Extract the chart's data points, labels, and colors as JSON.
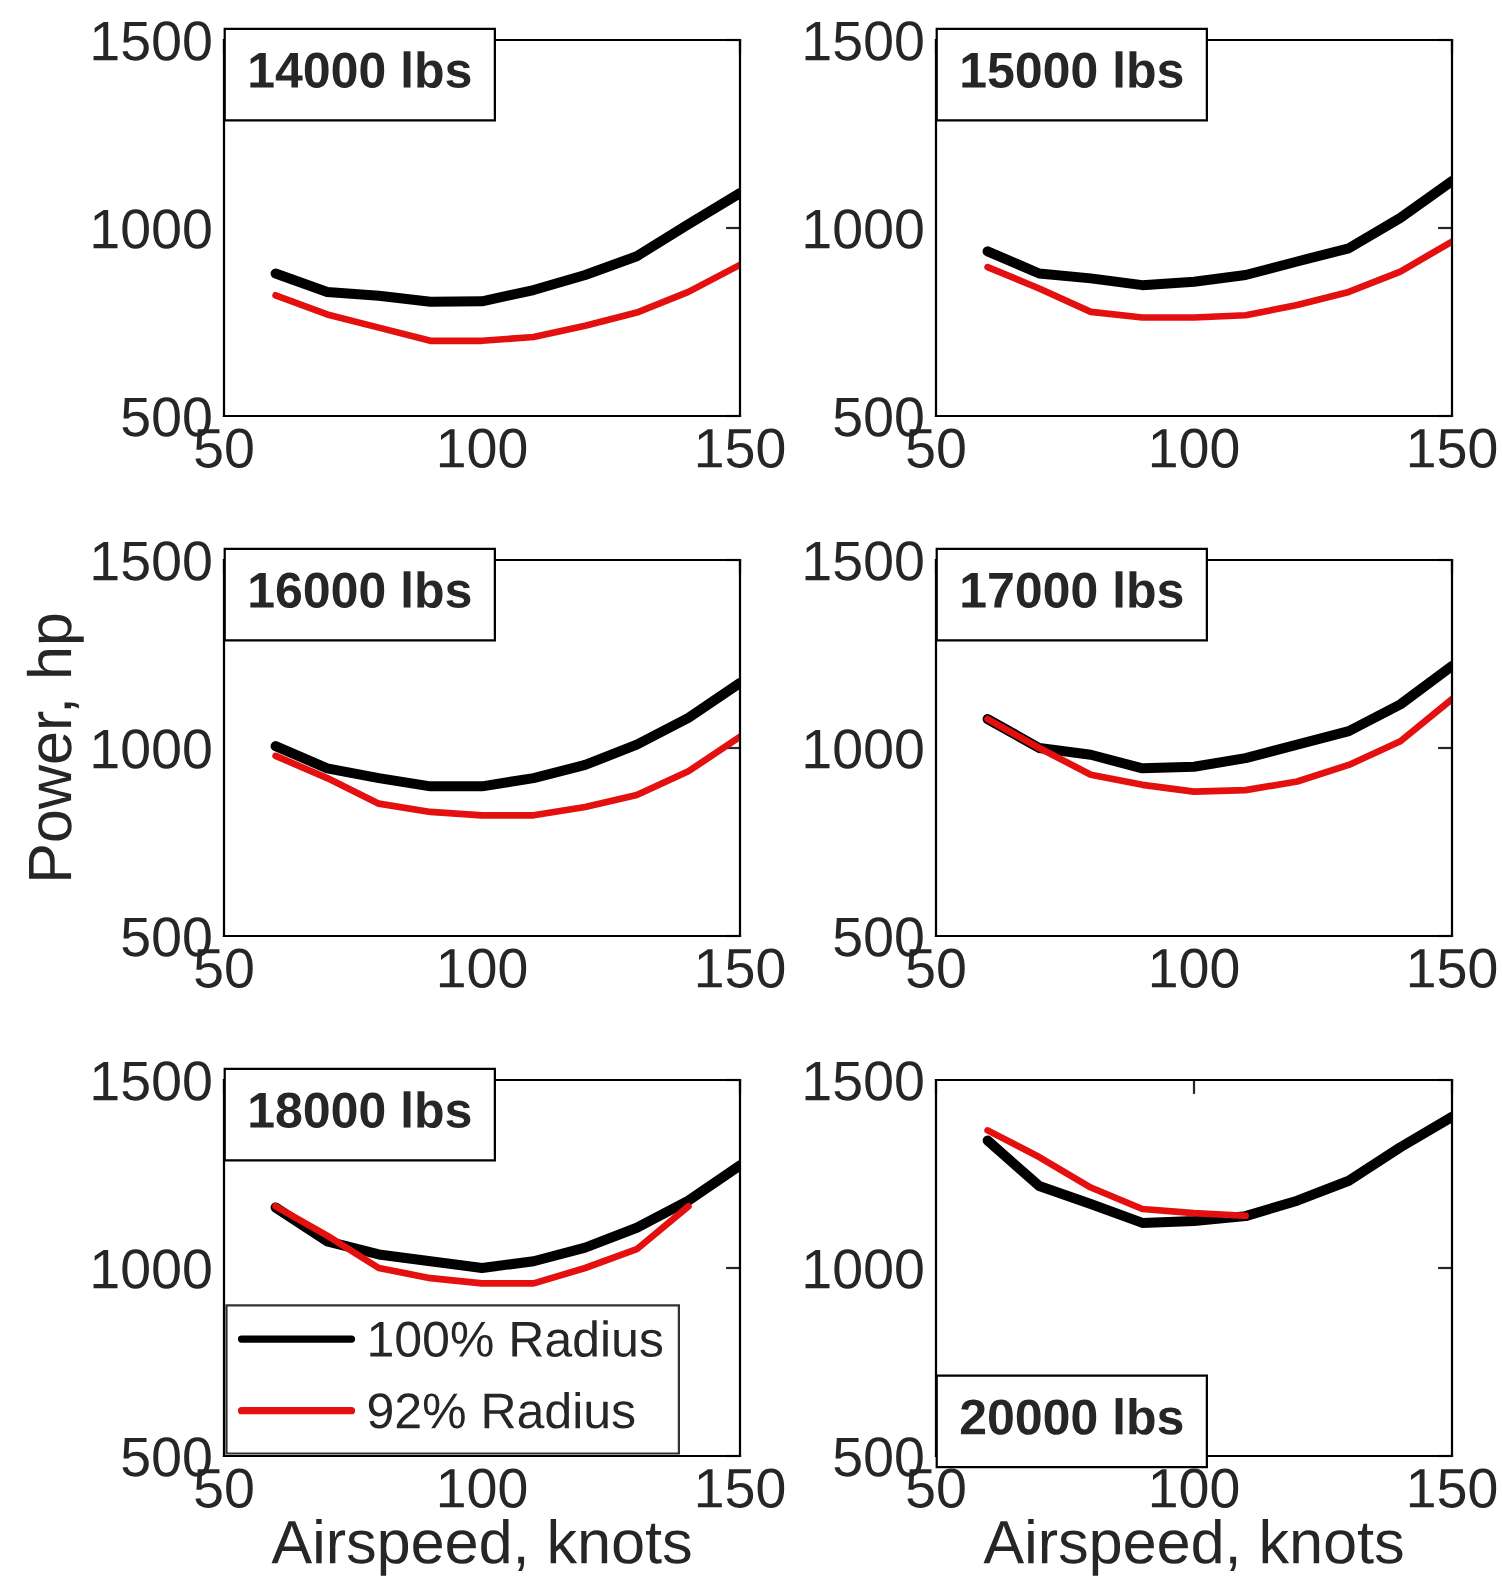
{
  "chart_data": [
    {
      "type": "line",
      "title": "14000 lbs",
      "x": [
        60,
        70,
        80,
        90,
        100,
        110,
        120,
        130,
        140,
        150
      ],
      "xlim": [
        50,
        150
      ],
      "xticks": [
        50,
        100,
        150
      ],
      "ylim": [
        500,
        1500
      ],
      "yticks": [
        500,
        1000,
        1500
      ],
      "legend": false,
      "series": [
        {
          "color": "#000000",
          "values": [
            879,
            830,
            820,
            804,
            805,
            835,
            875,
            925,
            1010,
            1093
          ]
        },
        {
          "color": "#e41010",
          "values": [
            821,
            770,
            735,
            700,
            700,
            710,
            740,
            775,
            830,
            902
          ]
        }
      ]
    },
    {
      "type": "line",
      "title": "15000 lbs",
      "x": [
        60,
        70,
        80,
        90,
        100,
        110,
        120,
        130,
        140,
        150
      ],
      "xlim": [
        50,
        150
      ],
      "xticks": [
        50,
        100,
        150
      ],
      "ylim": [
        500,
        1500
      ],
      "yticks": [
        500,
        1000,
        1500
      ],
      "legend": false,
      "series": [
        {
          "color": "#000000",
          "values": [
            938,
            879,
            866,
            848,
            857,
            875,
            911,
            946,
            1027,
            1125
          ]
        },
        {
          "color": "#e41010",
          "values": [
            896,
            839,
            777,
            762,
            762,
            768,
            795,
            830,
            884,
            964
          ]
        }
      ]
    },
    {
      "type": "line",
      "title": "16000 lbs",
      "ylabel": "Power, hp",
      "x": [
        60,
        70,
        80,
        90,
        100,
        110,
        120,
        130,
        140,
        150
      ],
      "xlim": [
        50,
        150
      ],
      "xticks": [
        50,
        100,
        150
      ],
      "ylim": [
        500,
        1500
      ],
      "yticks": [
        500,
        1000,
        1500
      ],
      "legend": false,
      "series": [
        {
          "color": "#000000",
          "values": [
            1005,
            946,
            920,
            898,
            898,
            920,
            955,
            1009,
            1080,
            1173
          ]
        },
        {
          "color": "#e41010",
          "values": [
            979,
            920,
            852,
            830,
            821,
            821,
            843,
            875,
            938,
            1030
          ]
        }
      ]
    },
    {
      "type": "line",
      "title": "17000 lbs",
      "x": [
        60,
        70,
        80,
        90,
        100,
        110,
        120,
        130,
        140,
        150
      ],
      "xlim": [
        50,
        150
      ],
      "xticks": [
        50,
        100,
        150
      ],
      "ylim": [
        500,
        1500
      ],
      "yticks": [
        500,
        1000,
        1500
      ],
      "legend": false,
      "series": [
        {
          "color": "#000000",
          "values": [
            1077,
            1000,
            982,
            946,
            950,
            973,
            1009,
            1045,
            1116,
            1218
          ]
        },
        {
          "color": "#e41010",
          "values": [
            1077,
            1000,
            929,
            902,
            884,
            888,
            911,
            955,
            1018,
            1130
          ]
        }
      ]
    },
    {
      "type": "line",
      "title": "18000 lbs",
      "xlabel": "Airspeed, knots",
      "x": [
        60,
        70,
        80,
        90,
        100,
        110,
        120,
        130,
        140,
        150
      ],
      "xlim": [
        50,
        150
      ],
      "xticks": [
        50,
        100,
        150
      ],
      "ylim": [
        500,
        1500
      ],
      "yticks": [
        500,
        1000,
        1500
      ],
      "legend": "bottom left",
      "series": [
        {
          "name": "100% Radius",
          "color": "#000000",
          "values": [
            1161,
            1071,
            1036,
            1018,
            1000,
            1018,
            1054,
            1107,
            1179,
            1273
          ]
        },
        {
          "name": "92% Radius",
          "color": "#e41010",
          "values": [
            1164,
            1086,
            1000,
            973,
            959,
            959,
            1000,
            1050,
            1164,
            null
          ]
        }
      ]
    },
    {
      "type": "line",
      "title": "20000 lbs",
      "xlabel": "Airspeed, knots",
      "x": [
        60,
        70,
        80,
        90,
        100,
        110,
        120,
        130,
        140,
        150
      ],
      "xlim": [
        50,
        150
      ],
      "xticks": [
        50,
        100,
        150
      ],
      "ylim": [
        500,
        1500
      ],
      "yticks": [
        500,
        1000,
        1500
      ],
      "legend": false,
      "series": [
        {
          "color": "#000000",
          "values": [
            1339,
            1218,
            1170,
            1120,
            1125,
            1138,
            1179,
            1232,
            1321,
            1402
          ]
        },
        {
          "color": "#e41010",
          "values": [
            1366,
            1295,
            1214,
            1157,
            1146,
            1139,
            null,
            null,
            null,
            null
          ]
        }
      ]
    }
  ]
}
